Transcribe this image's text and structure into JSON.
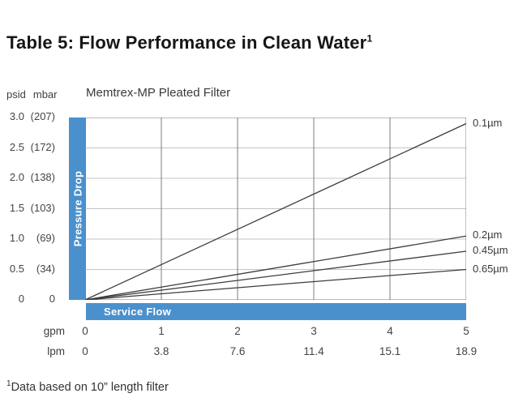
{
  "page": {
    "title": "Table 5: Flow Performance in Clean Water",
    "title_superscript": "1",
    "footnote_marker": "1",
    "footnote": "Data based on 10” length filter"
  },
  "chart_data": {
    "type": "line",
    "title": "Memtrex-MP Pleated Filter",
    "x_axis": {
      "units": [
        "gpm",
        "lpm"
      ],
      "gpm_ticks": [
        "0",
        "1",
        "2",
        "3",
        "4",
        "5"
      ],
      "lpm_ticks": [
        "0",
        "3.8",
        "7.6",
        "11.4",
        "15.1",
        "18.9"
      ],
      "bar_label": "Service Flow",
      "xlim": [
        0,
        5
      ]
    },
    "y_axis": {
      "units": [
        "psid",
        "mbar"
      ],
      "psid_ticks": [
        "3.0",
        "2.5",
        "2.0",
        "1.5",
        "1.0",
        "0.5",
        "0"
      ],
      "mbar_ticks": [
        "(207)",
        "(172)",
        "(138)",
        "(103)",
        "(69)",
        "(34)",
        "0"
      ],
      "bar_label": "Pressure Drop",
      "ylim": [
        0,
        3.0
      ]
    },
    "series": [
      {
        "name": "0.1µm",
        "x": [
          0,
          5
        ],
        "y_psid": [
          0,
          2.9
        ]
      },
      {
        "name": "0.2µm",
        "x": [
          0,
          5
        ],
        "y_psid": [
          0,
          1.05
        ]
      },
      {
        "name": "0.45µm",
        "x": [
          0,
          5
        ],
        "y_psid": [
          0,
          0.8
        ]
      },
      {
        "name": "0.65µm",
        "x": [
          0,
          5
        ],
        "y_psid": [
          0,
          0.5
        ]
      }
    ],
    "grid": true,
    "legend_position": "right-of-plot",
    "accent_color": "#4a90cd"
  }
}
